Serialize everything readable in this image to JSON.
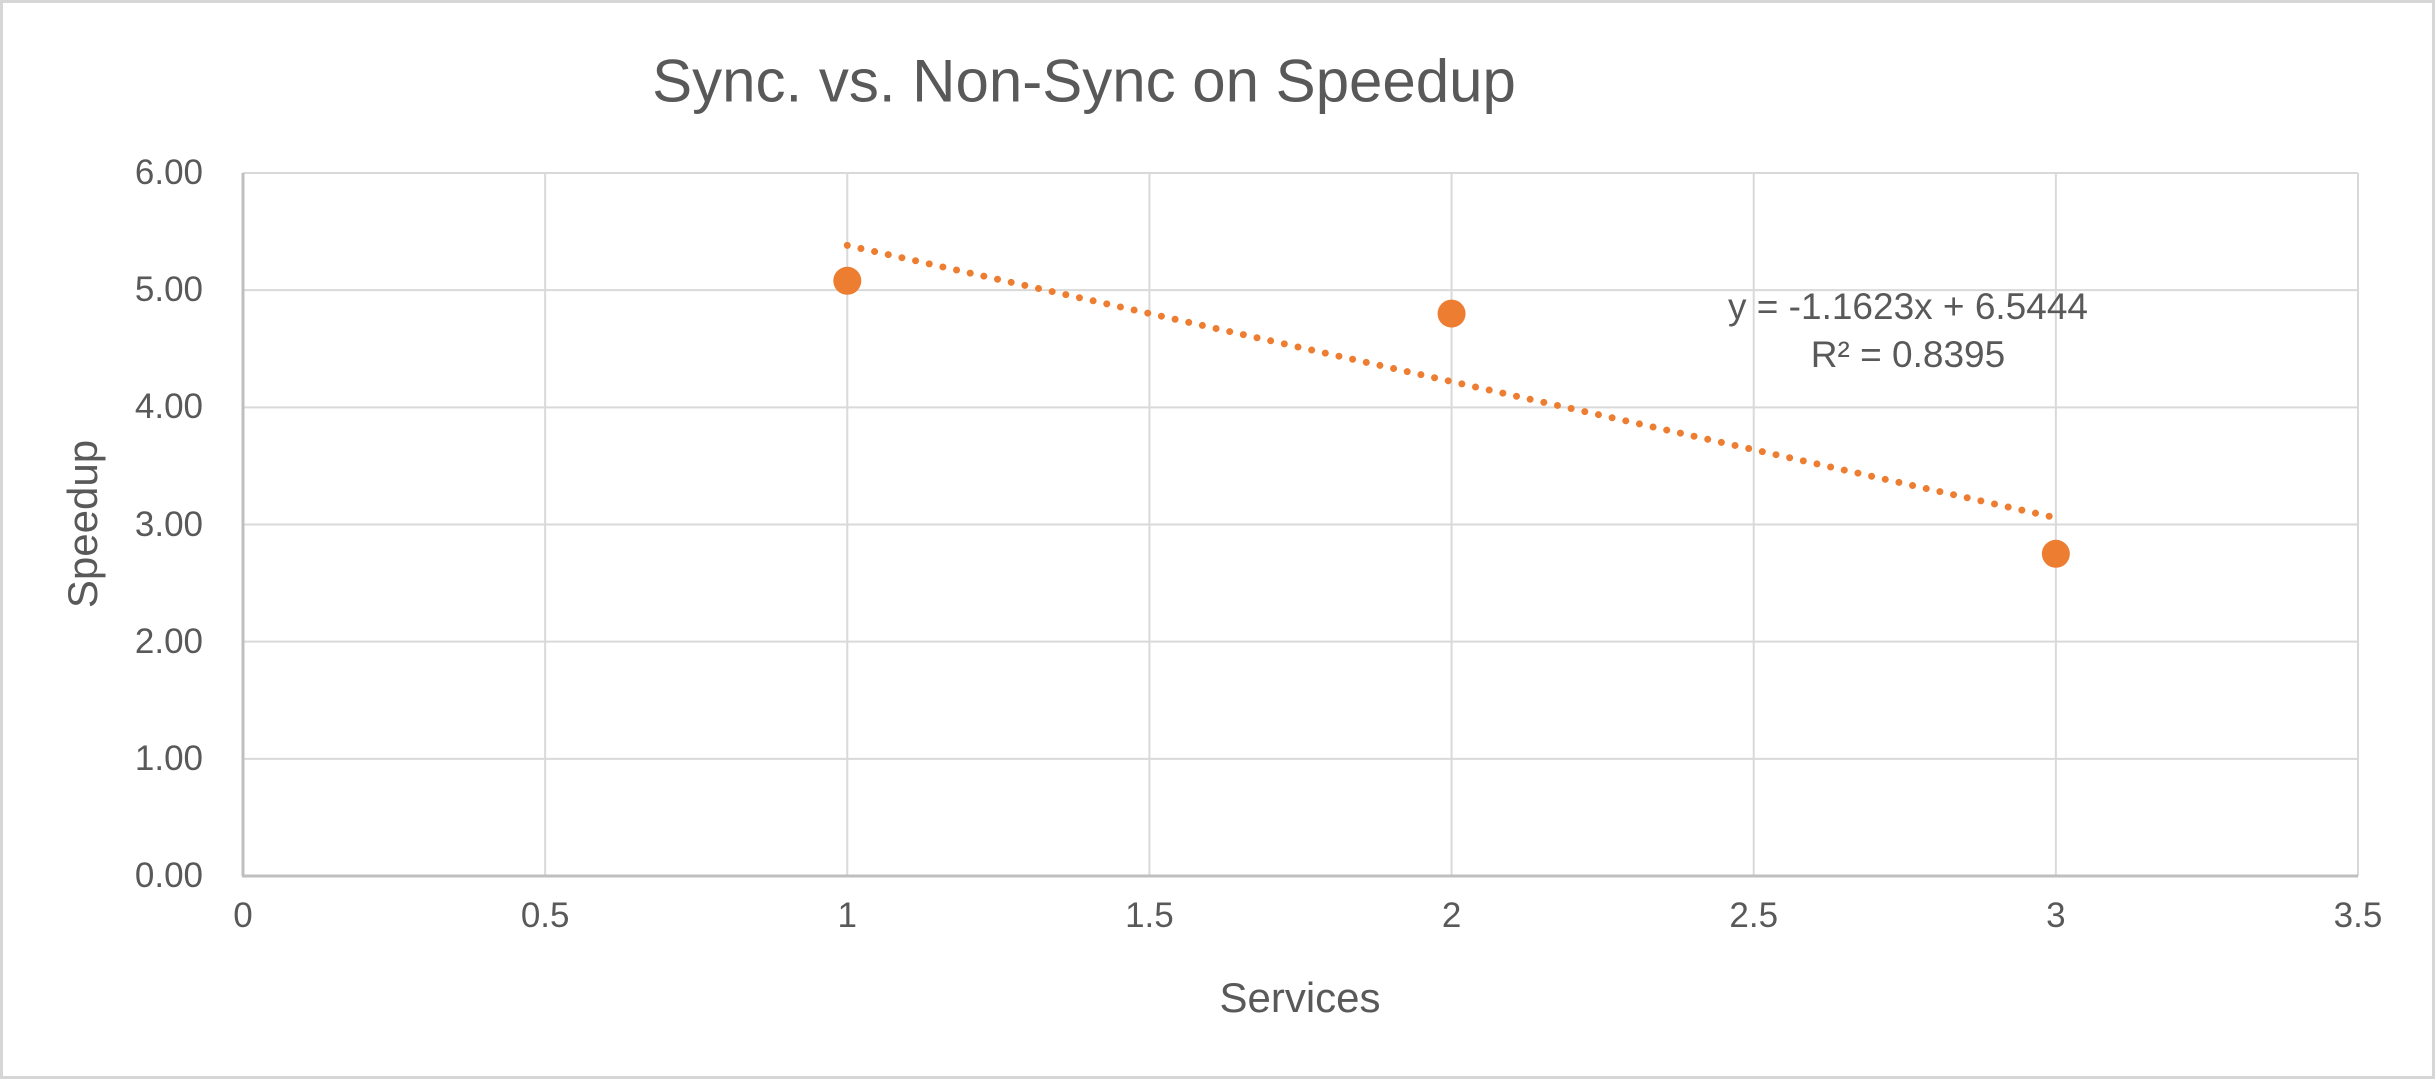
{
  "chart_data": {
    "type": "scatter",
    "title": "Sync. vs. Non-Sync on Speedup",
    "xlabel": "Services",
    "ylabel": "Speedup",
    "xlim": [
      0,
      3.5
    ],
    "ylim": [
      0,
      6
    ],
    "x_ticks": [
      "0",
      "0.5",
      "1",
      "1.5",
      "2",
      "2.5",
      "3",
      "3.5"
    ],
    "y_ticks": [
      "0.00",
      "1.00",
      "2.00",
      "3.00",
      "4.00",
      "5.00",
      "6.00"
    ],
    "grid": "on",
    "legend": "none",
    "series": [
      {
        "name": "Speedup",
        "points": [
          {
            "x": 1,
            "y": 5.08
          },
          {
            "x": 2,
            "y": 4.8
          },
          {
            "x": 3,
            "y": 2.75
          }
        ]
      }
    ],
    "trendline": {
      "kind": "linear",
      "slope": -1.1623,
      "intercept": 6.5444,
      "x_range": [
        1,
        3
      ],
      "equation": "y = -1.1623x + 6.5444",
      "r_squared": "R² = 0.8395",
      "style": "dotted"
    },
    "colors": {
      "marker": "#ED7D31",
      "trendline": "#ED7D31",
      "gridline": "#D9D9D9",
      "axis_line": "#BFBFBF",
      "text": "#595959",
      "background": "#FFFFFF",
      "page_border": "#D6D6D6"
    }
  }
}
